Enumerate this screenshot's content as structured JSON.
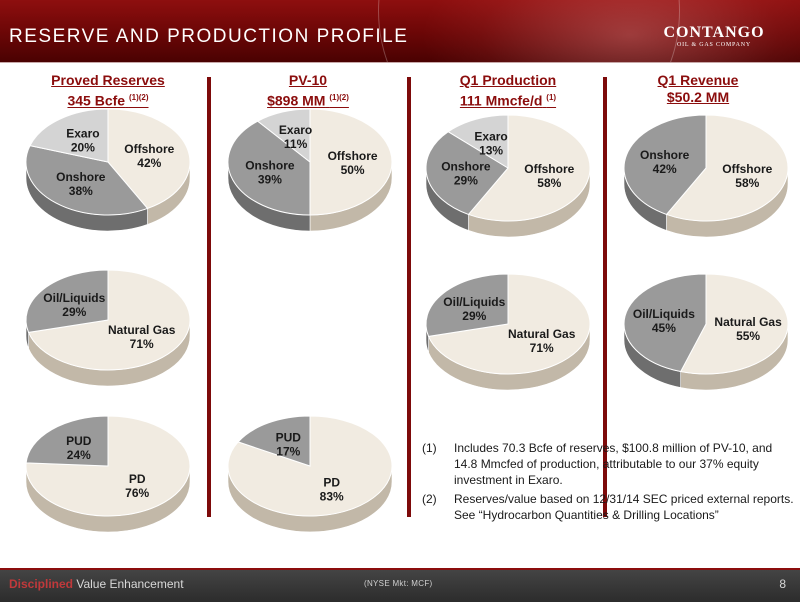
{
  "header": {
    "title": "RESERVE AND PRODUCTION PROFILE",
    "logo_name": "CONTANGO",
    "logo_sub": "OIL & GAS COMPANY"
  },
  "columns": [
    {
      "title": "Proved Reserves",
      "subtitle": "345 Bcfe",
      "sup": "(1)(2)"
    },
    {
      "title": "PV-10",
      "subtitle": "$898 MM",
      "sup": "(1)(2)"
    },
    {
      "title": "Q1 Production",
      "subtitle": "111 Mmcfe/d",
      "sup": "(1)"
    },
    {
      "title": "Q1 Revenue",
      "subtitle": "$50.2 MM",
      "sup": ""
    }
  ],
  "colors": {
    "primary": "#8b0d0d",
    "cream": "#f1ebe1",
    "gray": "#9a9a9a",
    "light": "#d4d4d4"
  },
  "chart_data": [
    {
      "type": "pie",
      "id": "reserves-region",
      "slices": [
        {
          "label": "Offshore",
          "value": 42,
          "display": "42%"
        },
        {
          "label": "Onshore",
          "value": 38,
          "display": "38%"
        },
        {
          "label": "Exaro",
          "value": 20,
          "display": "20%"
        }
      ]
    },
    {
      "type": "pie",
      "id": "pv10-region",
      "slices": [
        {
          "label": "Offshore",
          "value": 50,
          "display": "50%"
        },
        {
          "label": "Onshore",
          "value": 39,
          "display": "39%"
        },
        {
          "label": "Exaro",
          "value": 11,
          "display": "11%"
        }
      ]
    },
    {
      "type": "pie",
      "id": "production-region",
      "slices": [
        {
          "label": "Offshore",
          "value": 58,
          "display": "58%"
        },
        {
          "label": "Onshore",
          "value": 29,
          "display": "29%"
        },
        {
          "label": "Exaro",
          "value": 13,
          "display": "13%"
        }
      ]
    },
    {
      "type": "pie",
      "id": "revenue-region",
      "slices": [
        {
          "label": "Offshore",
          "value": 58,
          "display": "58%"
        },
        {
          "label": "Onshore",
          "value": 42,
          "display": "42%"
        }
      ]
    },
    {
      "type": "pie",
      "id": "reserves-commodity",
      "slices": [
        {
          "label": "Natural Gas",
          "value": 71,
          "display": "71%"
        },
        {
          "label": "Oil/Liquids",
          "value": 29,
          "display": "29%"
        }
      ]
    },
    {
      "type": "pie",
      "id": "production-commodity",
      "slices": [
        {
          "label": "Natural Gas",
          "value": 71,
          "display": "71%"
        },
        {
          "label": "Oil/Liquids",
          "value": 29,
          "display": "29%"
        }
      ]
    },
    {
      "type": "pie",
      "id": "revenue-commodity",
      "slices": [
        {
          "label": "Natural Gas",
          "value": 55,
          "display": "55%"
        },
        {
          "label": "Oil/Liquids",
          "value": 45,
          "display": "45%"
        }
      ]
    },
    {
      "type": "pie",
      "id": "reserves-category",
      "slices": [
        {
          "label": "PD",
          "value": 76,
          "display": "76%"
        },
        {
          "label": "PUD",
          "value": 24,
          "display": "24%"
        }
      ]
    },
    {
      "type": "pie",
      "id": "pv10-category",
      "slices": [
        {
          "label": "PD",
          "value": 83,
          "display": "83%"
        },
        {
          "label": "PUD",
          "value": 17,
          "display": "17%"
        }
      ]
    }
  ],
  "notes": [
    {
      "num": "(1)",
      "text": "Includes 70.3 Bcfe of reserves, $100.8 million of PV-10, and 14.8 Mmcfed of production, attributable to our 37% equity investment in Exaro."
    },
    {
      "num": "(2)",
      "text": "Reserves/value based on 12/31/14 SEC priced external reports. See “Hydrocarbon Quantities & Drilling Locations”"
    }
  ],
  "footer": {
    "brand_highlight": "Disciplined",
    "brand_rest": " Value Enhancement",
    "ticker": "(NYSE Mkt: MCF)",
    "page": "8"
  }
}
